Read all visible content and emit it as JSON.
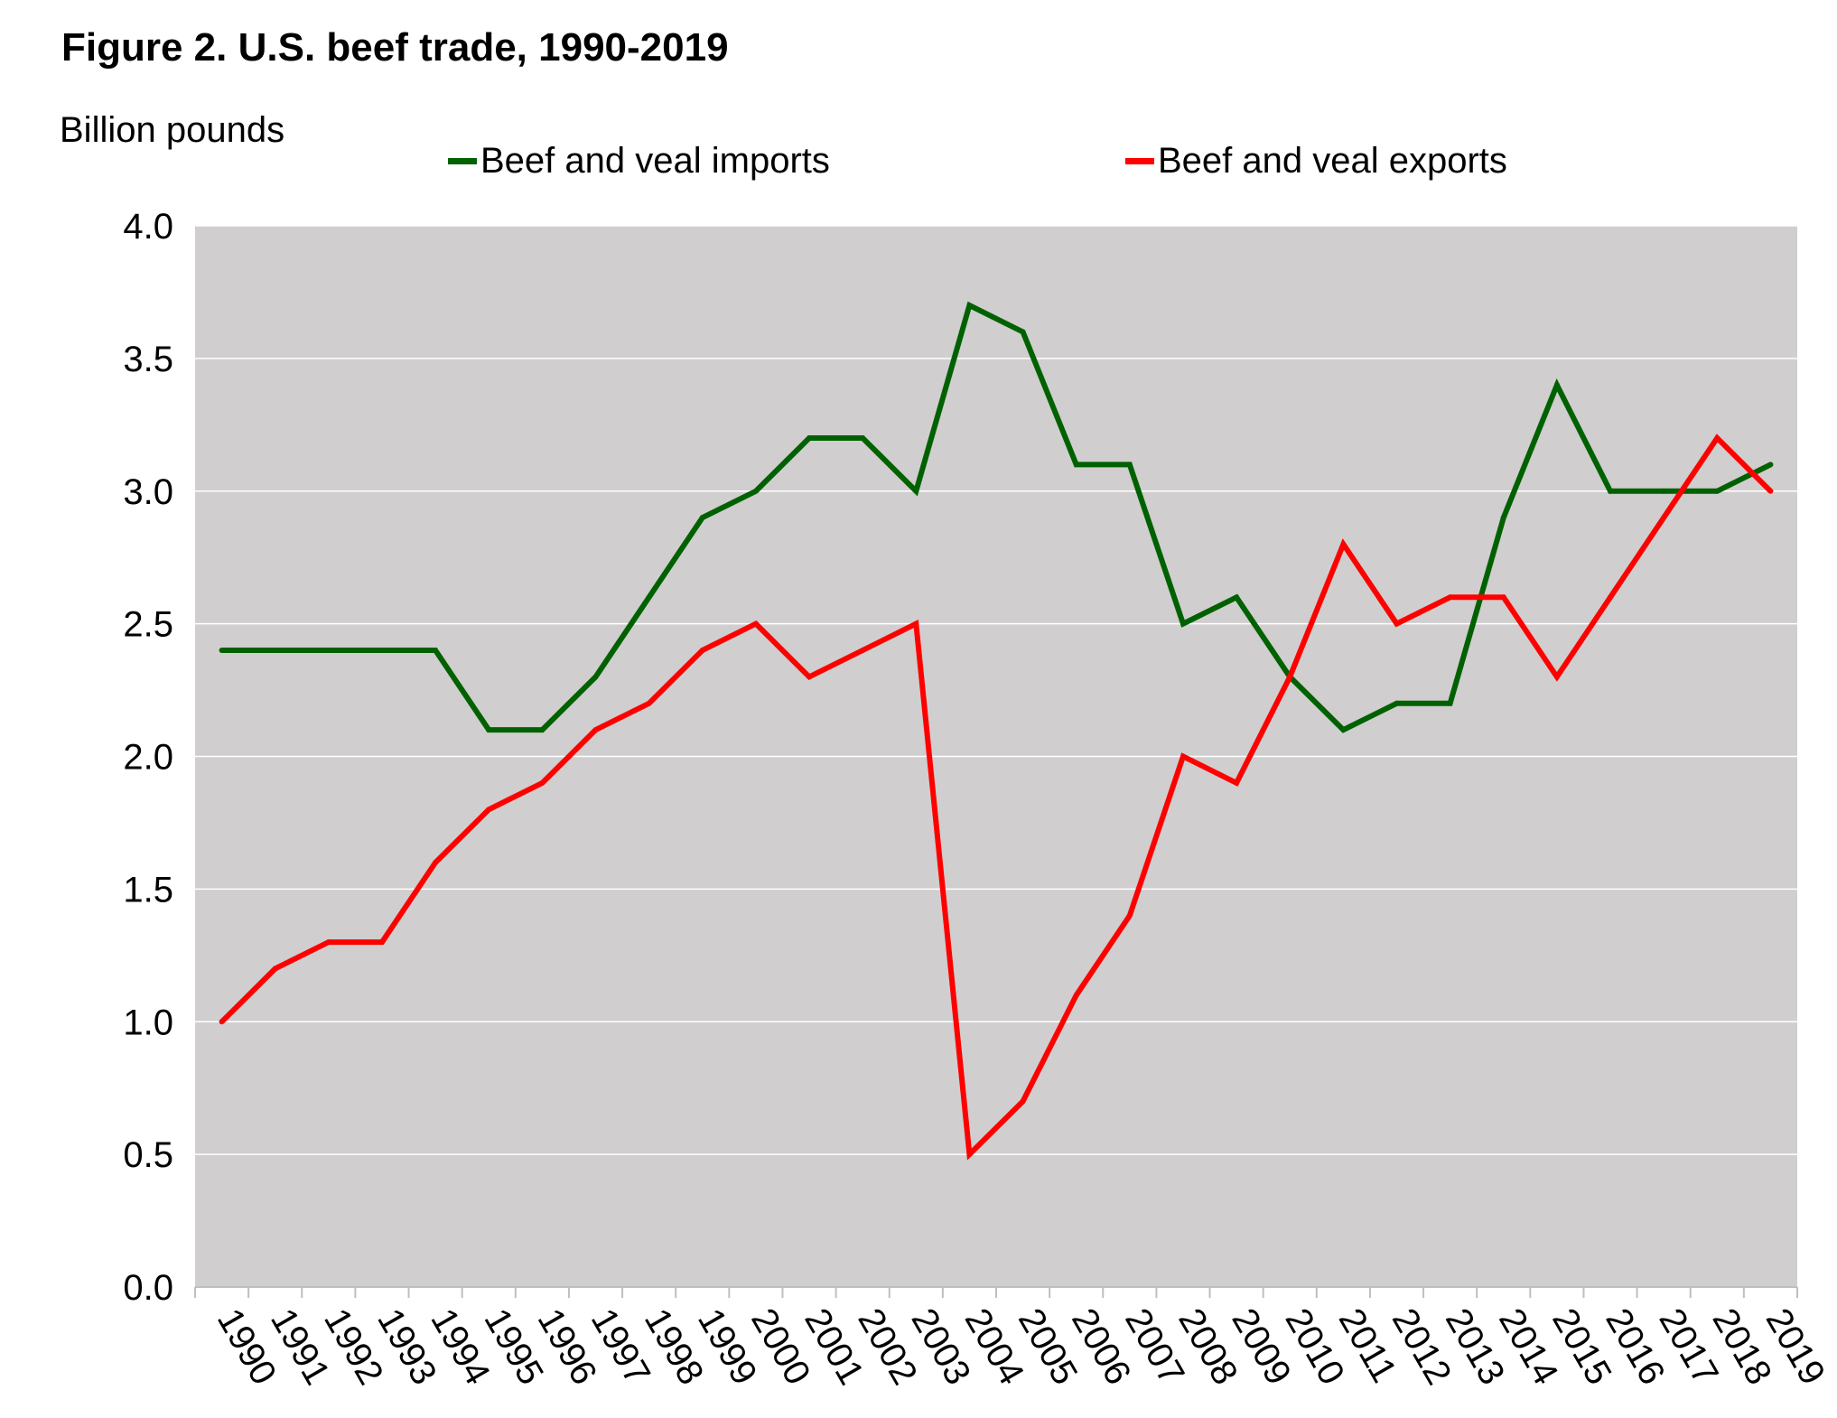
{
  "chart_data": {
    "type": "line",
    "title": "Figure 2. U.S. beef trade, 1990-2019",
    "ylabel": "Billion pounds",
    "xlabel": "",
    "ylim": [
      0,
      4
    ],
    "yticks": [
      "0.0",
      "0.5",
      "1.0",
      "1.5",
      "2.0",
      "2.5",
      "3.0",
      "3.5",
      "4.0"
    ],
    "grid": true,
    "legend_position": "top",
    "plot_background": "#d0cece",
    "categories": [
      "1990",
      "1991",
      "1992",
      "1993",
      "1994",
      "1995",
      "1996",
      "1997",
      "1998",
      "1999",
      "2000",
      "2001",
      "2002",
      "2003",
      "2004",
      "2005",
      "2006",
      "2007",
      "2008",
      "2009",
      "2010",
      "2011",
      "2012",
      "2013",
      "2014",
      "2015",
      "2016",
      "2017",
      "2018",
      "2019"
    ],
    "series": [
      {
        "name": "Beef and veal imports",
        "color": "#006100",
        "values": [
          2.4,
          2.4,
          2.4,
          2.4,
          2.4,
          2.1,
          2.1,
          2.3,
          2.6,
          2.9,
          3.0,
          3.2,
          3.2,
          3.0,
          3.7,
          3.6,
          3.1,
          3.1,
          2.5,
          2.6,
          2.3,
          2.1,
          2.2,
          2.2,
          2.9,
          3.4,
          3.0,
          3.0,
          3.0,
          3.1
        ]
      },
      {
        "name": "Beef and veal exports",
        "color": "#ff0000",
        "values": [
          1.0,
          1.2,
          1.3,
          1.3,
          1.6,
          1.8,
          1.9,
          2.1,
          2.2,
          2.4,
          2.5,
          2.3,
          2.4,
          2.5,
          0.5,
          0.7,
          1.1,
          1.4,
          2.0,
          1.9,
          2.3,
          2.8,
          2.5,
          2.6,
          2.6,
          2.3,
          2.6,
          2.9,
          3.2,
          3.0
        ]
      }
    ]
  }
}
